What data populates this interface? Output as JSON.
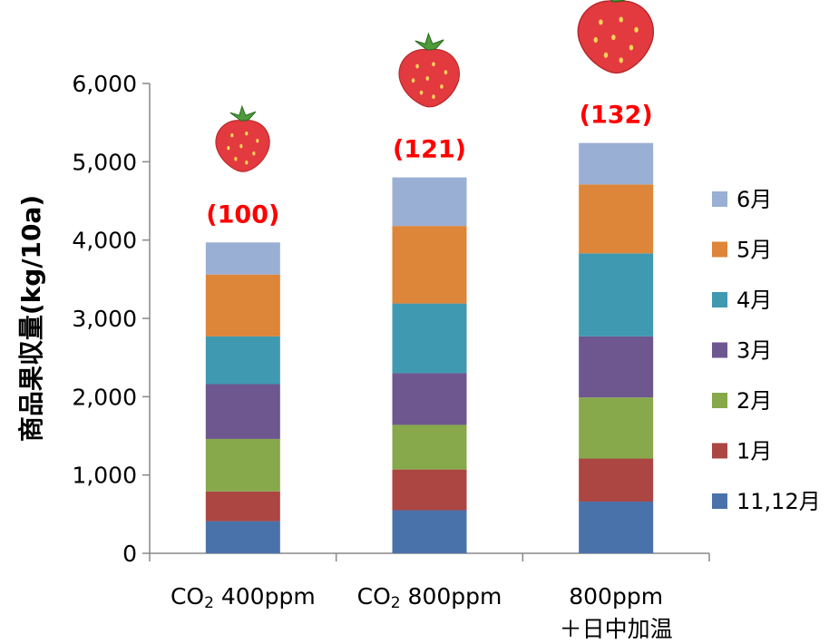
{
  "chart_data": {
    "type": "bar",
    "stacked": true,
    "title": "",
    "xlabel": "",
    "ylabel": "商品果収量(kg/10a)",
    "ylim": [
      0,
      6000
    ],
    "yticks": [
      0,
      1000,
      2000,
      3000,
      4000,
      5000,
      6000
    ],
    "ytick_labels": [
      "0",
      "1,000",
      "2,000",
      "3,000",
      "4,000",
      "5,000",
      "6,000"
    ],
    "grid": false,
    "legend_position": "right",
    "categories": [
      {
        "line1_prefix": "CO",
        "subscript": "2",
        "line1_suffix": " 400ppm",
        "line2": ""
      },
      {
        "line1_prefix": "CO",
        "subscript": "2",
        "line1_suffix": " 800ppm",
        "line2": ""
      },
      {
        "line1_prefix": "800ppm",
        "subscript": "",
        "line1_suffix": "",
        "line2": "＋日中加温"
      }
    ],
    "series": [
      {
        "name": "11,12月",
        "color": "#4a72aa",
        "values": [
          410,
          550,
          660
        ]
      },
      {
        "name": "1月",
        "color": "#ab4643",
        "values": [
          380,
          520,
          550
        ]
      },
      {
        "name": "2月",
        "color": "#87a84b",
        "values": [
          670,
          570,
          780
        ]
      },
      {
        "name": "3月",
        "color": "#6e568f",
        "values": [
          700,
          660,
          780
        ]
      },
      {
        "name": "4月",
        "color": "#3f99b1",
        "values": [
          610,
          890,
          1060
        ]
      },
      {
        "name": "5月",
        "color": "#dd8538",
        "values": [
          790,
          990,
          880
        ]
      },
      {
        "name": "6月",
        "color": "#9aafd4",
        "values": [
          410,
          620,
          530
        ]
      }
    ],
    "annotations": [
      "(100)",
      "(121)",
      "(132)"
    ],
    "annotation_color": "#ff0000",
    "decoration_icons": [
      "strawberry-icon",
      "strawberry-icon",
      "strawberry-icon"
    ]
  }
}
